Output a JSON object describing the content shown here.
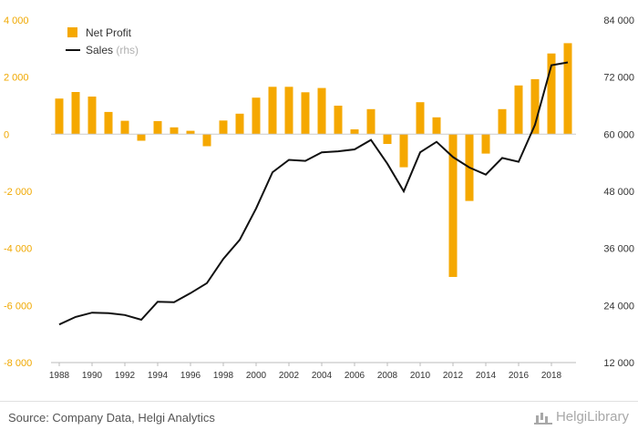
{
  "chart_data": {
    "type": "bar+line",
    "categories": [
      "1988",
      "1989",
      "1990",
      "1991",
      "1992",
      "1993",
      "1994",
      "1995",
      "1996",
      "1997",
      "1998",
      "1999",
      "2000",
      "2001",
      "2002",
      "2003",
      "2004",
      "2005",
      "2006",
      "2007",
      "2008",
      "2009",
      "2010",
      "2011",
      "2012",
      "2013",
      "2014",
      "2015",
      "2016",
      "2017",
      "2018",
      "2019"
    ],
    "x_tick_labels": [
      "1988",
      "1990",
      "1992",
      "1994",
      "1996",
      "1998",
      "2000",
      "2002",
      "2004",
      "2006",
      "2008",
      "2010",
      "2012",
      "2014",
      "2016",
      "2018"
    ],
    "series": [
      {
        "name": "Net Profit",
        "type": "bar",
        "axis": "left",
        "color": "#f5a800",
        "values": [
          1250,
          1480,
          1320,
          780,
          470,
          -230,
          460,
          240,
          120,
          -420,
          480,
          720,
          1280,
          1660,
          1660,
          1470,
          1620,
          1000,
          170,
          880,
          -340,
          -1160,
          1120,
          590,
          -5000,
          -2340,
          -680,
          880,
          1710,
          1930,
          2830,
          3190
        ]
      },
      {
        "name": "Sales",
        "name_note": "(rhs)",
        "type": "line",
        "axis": "right",
        "color": "#111111",
        "values": [
          20000,
          21600,
          22500,
          22400,
          22000,
          21000,
          24800,
          24700,
          26600,
          28700,
          33800,
          37800,
          44400,
          52000,
          54600,
          54400,
          56200,
          56400,
          56800,
          58800,
          53800,
          48000,
          56200,
          58400,
          55200,
          53000,
          51500,
          55000,
          54200,
          62000,
          74500,
          75100
        ]
      }
    ],
    "left_axis": {
      "min": -8000,
      "max": 4000,
      "step": 2000,
      "tick_labels": [
        "-8 000",
        "-6 000",
        "-4 000",
        "-2 000",
        "0",
        "2 000",
        "4 000"
      ]
    },
    "right_axis": {
      "min": 12000,
      "max": 84000,
      "step": 12000,
      "tick_labels": [
        "12 000",
        "24 000",
        "36 000",
        "48 000",
        "60 000",
        "72 000",
        "84 000"
      ]
    },
    "grid": false,
    "legend_position": "top-left"
  },
  "footer": {
    "source": "Source: Company Data, Helgi Analytics",
    "logo": "HelgiLibrary"
  }
}
